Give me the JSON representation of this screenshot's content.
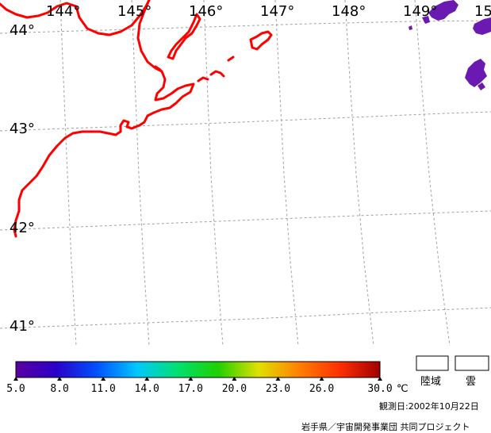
{
  "map": {
    "lon_labels": [
      "144°",
      "145°",
      "146°",
      "147°",
      "148°",
      "149°",
      "15"
    ],
    "lat_labels": [
      "44°",
      "43°",
      "42°",
      "41°"
    ]
  },
  "legend": {
    "colorbar_stops": [
      "#5a00a0",
      "#2a00c8",
      "#0050ff",
      "#00c8ff",
      "#00e070",
      "#20d000",
      "#e0e000",
      "#ff8000",
      "#ff3000",
      "#a00000"
    ],
    "tick_labels": [
      "5.0",
      "8.0",
      "11.0",
      "14.0",
      "17.0",
      "20.0",
      "23.0",
      "26.0",
      "30.0"
    ],
    "unit": "℃",
    "land_label": "陸域",
    "cloud_label": "雲"
  },
  "footer": {
    "observation_date": "観測日:2002年10月22日",
    "project_credit": "岩手県／宇宙開発事業団 共同プロジェクト"
  },
  "colors": {
    "coastline": "#ff0000",
    "grid": "#a0a0a0",
    "cloud_patch": "#6a1ab0"
  }
}
